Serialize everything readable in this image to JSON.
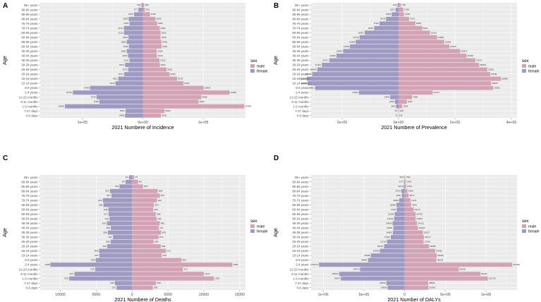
{
  "colors": {
    "male": "#d3a3b5",
    "female": "#9e9ac3",
    "panel_bg": "#ebebeb",
    "grid": "#ffffff"
  },
  "legend": {
    "title": "sex",
    "male": "male",
    "female": "female"
  },
  "age_groups": [
    "95+ years",
    "90-94 years",
    "85-89 years",
    "80-84 years",
    "75-79 years",
    "70-74 years",
    "65-69 years",
    "60-64 years",
    "55-59 years",
    "50-54 years",
    "45-49 years",
    "40-44 years",
    "35-39 years",
    "30-34 years",
    "25-29 years",
    "20-24 years",
    "15-19 years",
    "10-14 years",
    "5-9 years",
    "2-4 years",
    "12-23 months",
    "6-11 months",
    "1-5 months",
    "7-27 days",
    "0-6 days"
  ],
  "chart_data": [
    {
      "type": "bar",
      "panel": "A",
      "title": "",
      "xlabel": "2021 Numbere of Incidence",
      "ylabel": "Age",
      "xlim": [
        -170000,
        170000
      ],
      "xticks": [
        -100000,
        0,
        100000
      ],
      "xtick_labels": [
        "1e+05",
        "0e+00",
        "1e+05"
      ],
      "male": [
        1820,
        3262,
        11968,
        20818,
        23652,
        27859,
        29531,
        29156,
        30780,
        31081,
        23059,
        23218,
        27525,
        28221,
        39362,
        44392,
        56703,
        67333,
        100545,
        143802,
        96958,
        92093,
        167968,
        36030,
        30031
      ],
      "female": [
        2146,
        7377,
        14697,
        23528,
        22056,
        31217,
        31216,
        23878,
        26590,
        23066,
        26582,
        24528,
        21903,
        29473,
        24370,
        30773,
        40511,
        45423,
        87499,
        115793,
        76703,
        71908,
        129009,
        28621,
        29488
      ],
      "male_labels": [
        "1820",
        "3262",
        "11968",
        "20818",
        "23652",
        "27859",
        "29531",
        "29156",
        "30780",
        "31081",
        "23059",
        "23218",
        "27525",
        "28221",
        "39362",
        "44392",
        "56703",
        "67333",
        "100545",
        "143802",
        "96958",
        "92093",
        "167968",
        "36030",
        "30031"
      ],
      "female_labels": [
        "2146",
        "7377",
        "14697",
        "23528",
        "22056",
        "31217",
        "31216",
        "23878",
        "26590",
        "23066",
        "26582",
        "24528",
        "21903",
        "29473",
        "24370",
        "30773",
        "40511",
        "45423",
        "87499",
        "115793",
        "76703",
        "71908",
        "129009",
        "28621",
        "29488"
      ]
    },
    {
      "type": "bar",
      "panel": "B",
      "title": "",
      "xlabel": "2021 Numbere of Prevalence",
      "ylabel": "Age",
      "xlim": [
        -310000,
        420000
      ],
      "xticks": [
        -200000,
        0,
        200000,
        400000
      ],
      "xtick_labels": [
        "2e+05",
        "0e+00",
        "2e+05",
        "4e+05"
      ],
      "male": [
        7768,
        17090,
        19158,
        37235,
        59686,
        84051,
        111563,
        136809,
        161586,
        180370,
        218674,
        241050,
        272147,
        285833,
        314821,
        325184,
        362886,
        328045,
        335092,
        121071,
        47580,
        29607,
        12528,
        1200,
        105
      ],
      "female": [
        3219,
        10031,
        24495,
        44374,
        67420,
        86351,
        119937,
        137718,
        151808,
        172456,
        196380,
        219960,
        244771,
        271927,
        288049,
        306053,
        325193,
        321905,
        295801,
        140229,
        29433,
        13055,
        8684,
        797,
        92
      ],
      "male_labels": [
        "7768",
        "17090",
        "19158",
        "37235",
        "59686",
        "84051",
        "111563",
        "136809",
        "161586",
        "180370",
        "218674",
        "241050",
        "272147",
        "285833",
        "314821",
        "325184",
        "362886",
        "328045",
        "335092",
        "121071",
        "47580",
        "29607",
        "12528",
        "1200",
        "105"
      ],
      "female_labels": [
        "3219",
        "10031",
        "24495",
        "44374",
        "67420",
        "86351",
        "119937",
        "137718",
        "151808",
        "172456",
        "196380",
        "219960",
        "244771",
        "271927",
        "288049",
        "306053",
        "325193",
        "321905",
        "295801",
        "140229",
        "29433",
        "13055",
        "8684",
        "797",
        "92"
      ]
    },
    {
      "type": "bar",
      "panel": "C",
      "title": "",
      "xlabel": "2021 Numbere of Deaths",
      "ylabel": "Age",
      "xlim": [
        -12800,
        15800
      ],
      "xticks": [
        -10000,
        -5000,
        0,
        5000,
        10000,
        15000
      ],
      "xtick_labels": [
        "10000",
        "5000",
        "0",
        "5000",
        "10000",
        "15000"
      ],
      "male": [
        272,
        851,
        1510,
        3558,
        3877,
        3461,
        3037,
        2946,
        3288,
        3418,
        3861,
        3711,
        4036,
        3676,
        2988,
        3991,
        4721,
        4125,
        6883,
        13981,
        7074,
        10010,
        11395,
        3340,
        2895
      ],
      "female": [
        421,
        904,
        1766,
        3073,
        2871,
        4070,
        3985,
        3298,
        3271,
        3126,
        3504,
        2955,
        3368,
        2647,
        2996,
        3463,
        4606,
        4557,
        5068,
        11388,
        5135,
        8037,
        8755,
        2400,
        2161
      ],
      "male_labels": [
        "272",
        "851",
        "1510",
        "3558",
        "3877",
        "3461",
        "3037",
        "2946",
        "3288",
        "3418",
        "3861",
        "3711",
        "4036",
        "3676",
        "2988",
        "3991",
        "4721",
        "4125",
        "6883",
        "13981",
        "7074",
        "10010",
        "11395",
        "3340",
        "2895"
      ],
      "female_labels": [
        "421",
        "904",
        "1766",
        "3073",
        "2871",
        "4070",
        "3985",
        "3298",
        "3271",
        "3126",
        "3504",
        "2955",
        "3368",
        "2647",
        "2996",
        "3463",
        "4606",
        "4557",
        "5068",
        "11388",
        "5135",
        "8037",
        "8755",
        "2400",
        "2161"
      ]
    },
    {
      "type": "bar",
      "panel": "D",
      "title": "",
      "xlabel": "2021 Number of DALYs",
      "ylabel": "Age",
      "xlim": [
        -1150000,
        1380000
      ],
      "xticks": [
        -1000000,
        -500000,
        0,
        500000,
        1000000
      ],
      "xtick_labels": [
        "1e+06",
        "5e+05",
        "0",
        "5e+05",
        "1e+06"
      ],
      "male": [
        7832,
        12443,
        17029,
        34030,
        48170,
        72612,
        79542,
        111179,
        134745,
        134879,
        151421,
        162608,
        223977,
        236177,
        232060,
        298383,
        374469,
        393346,
        388149,
        1321051,
        665344,
        931180,
        1021792,
        288921,
        291600
      ],
      "female": [
        3515,
        8771,
        13118,
        40703,
        33651,
        68089,
        100998,
        97696,
        123283,
        130152,
        148559,
        139531,
        144825,
        170451,
        217100,
        253437,
        305008,
        415648,
        448687,
        1052751,
        547670,
        805016,
        784576,
        225006,
        208828
      ],
      "male_labels": [
        "7832",
        "12443",
        "17029",
        "34030",
        "48170",
        "72612",
        "79542",
        "111179",
        "134745",
        "134879",
        "151421",
        "162608",
        "223977",
        "236177",
        "232060",
        "298383",
        "374469",
        "393346",
        "388149",
        "1321051",
        "665344",
        "931180",
        "1021792",
        "288921",
        "291600"
      ],
      "female_labels": [
        "3515",
        "8771",
        "13118",
        "40703",
        "33651",
        "68089",
        "100998",
        "97696",
        "123283",
        "130152",
        "148559",
        "139531",
        "144825",
        "170451",
        "217100",
        "253437",
        "305008",
        "415648",
        "448687",
        "1052751",
        "547670",
        "805016",
        "784576",
        "225006",
        "208828"
      ]
    }
  ]
}
